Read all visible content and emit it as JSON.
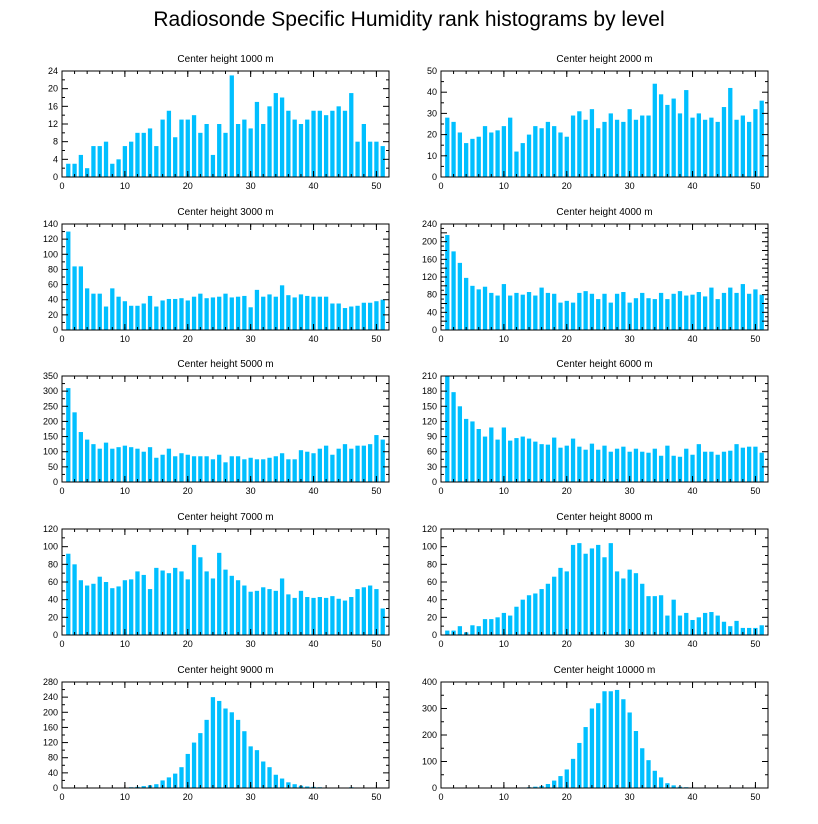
{
  "title": "Radiosonde Specific Humidity rank histograms by level",
  "bar_color": "#00bfff",
  "chart_data": [
    {
      "type": "bar",
      "title": "Center height 1000 m",
      "xlim": [
        0,
        52
      ],
      "ylim": [
        0,
        24
      ],
      "xticks": [
        0,
        10,
        20,
        30,
        40,
        50
      ],
      "yticks": [
        0,
        4,
        8,
        12,
        16,
        20,
        24
      ],
      "x": [
        1,
        2,
        3,
        4,
        5,
        6,
        7,
        8,
        9,
        10,
        11,
        12,
        13,
        14,
        15,
        16,
        17,
        18,
        19,
        20,
        21,
        22,
        23,
        24,
        25,
        26,
        27,
        28,
        29,
        30,
        31,
        32,
        33,
        34,
        35,
        36,
        37,
        38,
        39,
        40,
        41,
        42,
        43,
        44,
        45,
        46,
        47,
        48,
        49,
        50,
        51
      ],
      "values": [
        3,
        3,
        5,
        2,
        7,
        7,
        8,
        3,
        4,
        7,
        8,
        10,
        10,
        11,
        7,
        13,
        15,
        9,
        13,
        13,
        14,
        10,
        12,
        5,
        12,
        10,
        23,
        12,
        13,
        11,
        17,
        12,
        16,
        19,
        18,
        15,
        13,
        12,
        13,
        15,
        15,
        14,
        15,
        16,
        15,
        19,
        8,
        12,
        8,
        8,
        7
      ]
    },
    {
      "type": "bar",
      "title": "Center height 2000 m",
      "xlim": [
        0,
        52
      ],
      "ylim": [
        0,
        50
      ],
      "xticks": [
        0,
        10,
        20,
        30,
        40,
        50
      ],
      "yticks": [
        0,
        10,
        20,
        30,
        40,
        50
      ],
      "x": [
        1,
        2,
        3,
        4,
        5,
        6,
        7,
        8,
        9,
        10,
        11,
        12,
        13,
        14,
        15,
        16,
        17,
        18,
        19,
        20,
        21,
        22,
        23,
        24,
        25,
        26,
        27,
        28,
        29,
        30,
        31,
        32,
        33,
        34,
        35,
        36,
        37,
        38,
        39,
        40,
        41,
        42,
        43,
        44,
        45,
        46,
        47,
        48,
        49,
        50,
        51
      ],
      "values": [
        28,
        26,
        21,
        16,
        18,
        19,
        24,
        21,
        22,
        24,
        28,
        12,
        16,
        20,
        24,
        23,
        26,
        24,
        21,
        19,
        29,
        31,
        27,
        32,
        23,
        26,
        30,
        27,
        26,
        32,
        27,
        29,
        29,
        44,
        39,
        34,
        37,
        30,
        41,
        28,
        30,
        27,
        28,
        26,
        33,
        42,
        27,
        29,
        26,
        32,
        36
      ]
    },
    {
      "type": "bar",
      "title": "Center height 3000 m",
      "xlim": [
        0,
        52
      ],
      "ylim": [
        0,
        140
      ],
      "xticks": [
        0,
        10,
        20,
        30,
        40,
        50
      ],
      "yticks": [
        0,
        20,
        40,
        60,
        80,
        100,
        120,
        140
      ],
      "x": [
        1,
        2,
        3,
        4,
        5,
        6,
        7,
        8,
        9,
        10,
        11,
        12,
        13,
        14,
        15,
        16,
        17,
        18,
        19,
        20,
        21,
        22,
        23,
        24,
        25,
        26,
        27,
        28,
        29,
        30,
        31,
        32,
        33,
        34,
        35,
        36,
        37,
        38,
        39,
        40,
        41,
        42,
        43,
        44,
        45,
        46,
        47,
        48,
        49,
        50,
        51
      ],
      "values": [
        130,
        84,
        84,
        55,
        48,
        48,
        31,
        55,
        44,
        38,
        32,
        32,
        35,
        45,
        31,
        39,
        41,
        41,
        42,
        39,
        44,
        48,
        42,
        43,
        44,
        48,
        43,
        44,
        45,
        30,
        53,
        44,
        47,
        44,
        59,
        46,
        43,
        47,
        45,
        44,
        44,
        44,
        35,
        35,
        29,
        31,
        32,
        36,
        36,
        38,
        40
      ]
    },
    {
      "type": "bar",
      "title": "Center height 4000 m",
      "xlim": [
        0,
        52
      ],
      "ylim": [
        0,
        240
      ],
      "xticks": [
        0,
        10,
        20,
        30,
        40,
        50
      ],
      "yticks": [
        0,
        20,
        40,
        60,
        80,
        100,
        120,
        140,
        160,
        180,
        200,
        220,
        240
      ],
      "ytick_labels": [
        "0",
        "",
        "40",
        "",
        "80",
        "",
        "120",
        "",
        "160",
        "",
        "200",
        "",
        "240"
      ],
      "x": [
        1,
        2,
        3,
        4,
        5,
        6,
        7,
        8,
        9,
        10,
        11,
        12,
        13,
        14,
        15,
        16,
        17,
        18,
        19,
        20,
        21,
        22,
        23,
        24,
        25,
        26,
        27,
        28,
        29,
        30,
        31,
        32,
        33,
        34,
        35,
        36,
        37,
        38,
        39,
        40,
        41,
        42,
        43,
        44,
        45,
        46,
        47,
        48,
        49,
        50,
        51
      ],
      "values": [
        215,
        178,
        152,
        118,
        100,
        92,
        98,
        84,
        78,
        104,
        78,
        84,
        80,
        86,
        78,
        96,
        84,
        82,
        62,
        66,
        62,
        84,
        88,
        82,
        70,
        82,
        62,
        82,
        86,
        62,
        72,
        84,
        72,
        70,
        84,
        70,
        82,
        88,
        78,
        80,
        86,
        76,
        96,
        70,
        84,
        96,
        84,
        104,
        82,
        92,
        80
      ]
    },
    {
      "type": "bar",
      "title": "Center height 5000 m",
      "xlim": [
        0,
        52
      ],
      "ylim": [
        0,
        350
      ],
      "xticks": [
        0,
        10,
        20,
        30,
        40,
        50
      ],
      "yticks": [
        0,
        50,
        100,
        150,
        200,
        250,
        300,
        350
      ],
      "x": [
        1,
        2,
        3,
        4,
        5,
        6,
        7,
        8,
        9,
        10,
        11,
        12,
        13,
        14,
        15,
        16,
        17,
        18,
        19,
        20,
        21,
        22,
        23,
        24,
        25,
        26,
        27,
        28,
        29,
        30,
        31,
        32,
        33,
        34,
        35,
        36,
        37,
        38,
        39,
        40,
        41,
        42,
        43,
        44,
        45,
        46,
        47,
        48,
        49,
        50,
        51
      ],
      "values": [
        310,
        230,
        165,
        140,
        125,
        110,
        130,
        110,
        115,
        120,
        115,
        110,
        100,
        115,
        80,
        90,
        110,
        85,
        95,
        90,
        85,
        85,
        85,
        75,
        90,
        65,
        85,
        85,
        75,
        80,
        75,
        75,
        80,
        85,
        95,
        75,
        75,
        105,
        100,
        95,
        110,
        120,
        90,
        110,
        125,
        110,
        120,
        120,
        125,
        155,
        140
      ]
    },
    {
      "type": "bar",
      "title": "Center height 6000 m",
      "xlim": [
        0,
        52
      ],
      "ylim": [
        0,
        210
      ],
      "xticks": [
        0,
        10,
        20,
        30,
        40,
        50
      ],
      "yticks": [
        0,
        30,
        60,
        90,
        120,
        150,
        180,
        210
      ],
      "x": [
        1,
        2,
        3,
        4,
        5,
        6,
        7,
        8,
        9,
        10,
        11,
        12,
        13,
        14,
        15,
        16,
        17,
        18,
        19,
        20,
        21,
        22,
        23,
        24,
        25,
        26,
        27,
        28,
        29,
        30,
        31,
        32,
        33,
        34,
        35,
        36,
        37,
        38,
        39,
        40,
        41,
        42,
        43,
        44,
        45,
        46,
        47,
        48,
        49,
        50,
        51
      ],
      "values": [
        210,
        178,
        150,
        125,
        120,
        105,
        90,
        108,
        84,
        108,
        82,
        87,
        90,
        86,
        80,
        75,
        74,
        88,
        68,
        72,
        86,
        70,
        64,
        76,
        64,
        72,
        60,
        66,
        70,
        60,
        66,
        60,
        58,
        66,
        52,
        72,
        52,
        50,
        66,
        54,
        75,
        60,
        60,
        54,
        60,
        62,
        75,
        68,
        70,
        70,
        58
      ]
    },
    {
      "type": "bar",
      "title": "Center height 7000 m",
      "xlim": [
        0,
        52
      ],
      "ylim": [
        0,
        120
      ],
      "xticks": [
        0,
        10,
        20,
        30,
        40,
        50
      ],
      "yticks": [
        0,
        20,
        40,
        60,
        80,
        100,
        120
      ],
      "x": [
        1,
        2,
        3,
        4,
        5,
        6,
        7,
        8,
        9,
        10,
        11,
        12,
        13,
        14,
        15,
        16,
        17,
        18,
        19,
        20,
        21,
        22,
        23,
        24,
        25,
        26,
        27,
        28,
        29,
        30,
        31,
        32,
        33,
        34,
        35,
        36,
        37,
        38,
        39,
        40,
        41,
        42,
        43,
        44,
        45,
        46,
        47,
        48,
        49,
        50,
        51
      ],
      "values": [
        92,
        80,
        62,
        56,
        58,
        66,
        60,
        53,
        55,
        62,
        63,
        72,
        68,
        52,
        76,
        73,
        70,
        76,
        72,
        63,
        102,
        88,
        72,
        64,
        93,
        74,
        67,
        62,
        56,
        49,
        50,
        54,
        52,
        50,
        64,
        46,
        42,
        50,
        43,
        42,
        43,
        42,
        44,
        41,
        39,
        43,
        52,
        54,
        56,
        52,
        30
      ]
    },
    {
      "type": "bar",
      "title": "Center height 8000 m",
      "xlim": [
        0,
        52
      ],
      "ylim": [
        0,
        120
      ],
      "xticks": [
        0,
        10,
        20,
        30,
        40,
        50
      ],
      "yticks": [
        0,
        20,
        40,
        60,
        80,
        100,
        120
      ],
      "x": [
        1,
        2,
        3,
        4,
        5,
        6,
        7,
        8,
        9,
        10,
        11,
        12,
        13,
        14,
        15,
        16,
        17,
        18,
        19,
        20,
        21,
        22,
        23,
        24,
        25,
        26,
        27,
        28,
        29,
        30,
        31,
        32,
        33,
        34,
        35,
        36,
        37,
        38,
        39,
        40,
        41,
        42,
        43,
        44,
        45,
        46,
        47,
        48,
        49,
        50,
        51
      ],
      "values": [
        5,
        5,
        10,
        3,
        11,
        10,
        18,
        18,
        20,
        25,
        22,
        32,
        40,
        45,
        47,
        52,
        58,
        66,
        76,
        72,
        102,
        104,
        92,
        98,
        102,
        88,
        104,
        72,
        64,
        74,
        70,
        58,
        44,
        44,
        45,
        22,
        40,
        22,
        25,
        17,
        20,
        25,
        26,
        22,
        15,
        10,
        16,
        8,
        8,
        8,
        11
      ]
    },
    {
      "type": "bar",
      "title": "Center height 9000 m",
      "xlim": [
        0,
        52
      ],
      "ylim": [
        0,
        280
      ],
      "xticks": [
        0,
        10,
        20,
        30,
        40,
        50
      ],
      "yticks": [
        0,
        40,
        80,
        120,
        160,
        200,
        240,
        280
      ],
      "x": [
        1,
        2,
        3,
        4,
        5,
        6,
        7,
        8,
        9,
        10,
        11,
        12,
        13,
        14,
        15,
        16,
        17,
        18,
        19,
        20,
        21,
        22,
        23,
        24,
        25,
        26,
        27,
        28,
        29,
        30,
        31,
        32,
        33,
        34,
        35,
        36,
        37,
        38,
        39,
        40,
        41,
        42,
        43,
        44,
        45,
        46,
        47,
        48,
        49,
        50,
        51
      ],
      "values": [
        0,
        0,
        0,
        0,
        0,
        0,
        0,
        0,
        0,
        1,
        2,
        3,
        5,
        7,
        10,
        20,
        28,
        38,
        55,
        90,
        120,
        145,
        180,
        240,
        230,
        210,
        200,
        180,
        150,
        110,
        100,
        70,
        55,
        35,
        25,
        15,
        10,
        6,
        4,
        3,
        2,
        1,
        1,
        0,
        0,
        2,
        1,
        0,
        0,
        0,
        0
      ]
    },
    {
      "type": "bar",
      "title": "Center height 10000 m",
      "xlim": [
        0,
        52
      ],
      "ylim": [
        0,
        400
      ],
      "xticks": [
        0,
        10,
        20,
        30,
        40,
        50
      ],
      "yticks": [
        0,
        100,
        200,
        300,
        400
      ],
      "x": [
        1,
        2,
        3,
        4,
        5,
        6,
        7,
        8,
        9,
        10,
        11,
        12,
        13,
        14,
        15,
        16,
        17,
        18,
        19,
        20,
        21,
        22,
        23,
        24,
        25,
        26,
        27,
        28,
        29,
        30,
        31,
        32,
        33,
        34,
        35,
        36,
        37,
        38,
        39,
        40,
        41,
        42,
        43,
        44,
        45,
        46,
        47,
        48,
        49,
        50,
        51
      ],
      "values": [
        0,
        0,
        0,
        0,
        0,
        0,
        0,
        0,
        0,
        0,
        0,
        1,
        2,
        3,
        5,
        8,
        15,
        28,
        45,
        70,
        110,
        170,
        230,
        300,
        320,
        365,
        365,
        370,
        335,
        285,
        215,
        150,
        105,
        65,
        40,
        18,
        10,
        5,
        3,
        2,
        1,
        1,
        0,
        0,
        0,
        2,
        1,
        0,
        0,
        0,
        0
      ]
    }
  ]
}
